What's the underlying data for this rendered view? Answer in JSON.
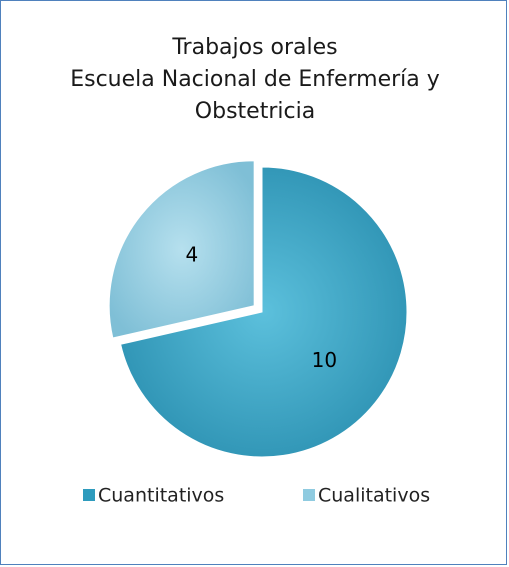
{
  "chart_data": {
    "type": "pie",
    "title": "Trabajos orales",
    "subtitle": "Escuela Nacional de Enfermería y Obstetricia",
    "categories": [
      "Cuantitativos",
      "Cualitativos"
    ],
    "values": [
      10,
      4
    ],
    "colors": [
      "#2e9bbd",
      "#8fcbe0"
    ],
    "legend": "bottom"
  }
}
